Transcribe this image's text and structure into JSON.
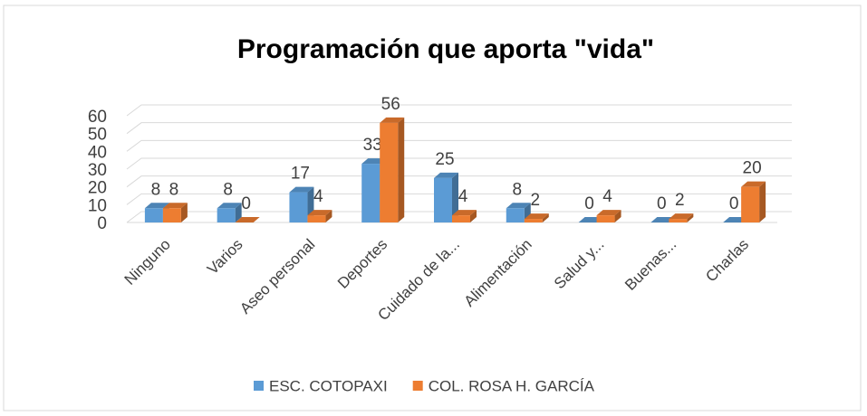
{
  "chart_data": {
    "type": "bar3d",
    "title": "Programación que aporta \"vida\"",
    "categories": [
      "Ninguno",
      "Varios",
      "Aseo personal",
      "Deportes",
      "Cuidado de la...",
      "Alimentación",
      "Salud y...",
      "Buenas...",
      "Charlas"
    ],
    "series": [
      {
        "name": "ESC. COTOPAXI",
        "color": "#5b9bd5",
        "values": [
          8,
          8,
          17,
          33,
          25,
          8,
          0,
          0,
          0
        ]
      },
      {
        "name": "COL. ROSA H. GARCÍA",
        "color": "#ed7d31",
        "values": [
          8,
          0,
          4,
          56,
          4,
          2,
          4,
          2,
          20
        ]
      }
    ],
    "ylim": [
      0,
      60
    ],
    "yticks": [
      0,
      10,
      20,
      30,
      40,
      50,
      60
    ],
    "grid": true,
    "legend": "bottom"
  }
}
